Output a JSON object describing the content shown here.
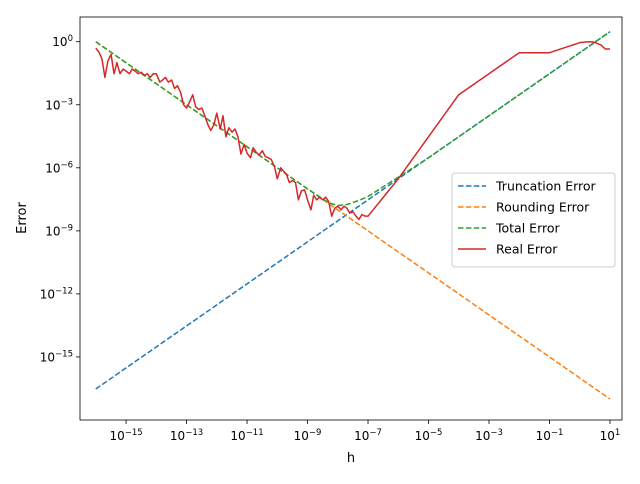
{
  "chart_data": {
    "type": "line",
    "xlabel": "h",
    "ylabel": "Error",
    "xscale": "log",
    "yscale": "log",
    "xlim": [
      3e-17,
      25
    ],
    "ylim": [
      1e-18,
      15
    ],
    "grid": false,
    "legend_position": "right",
    "x_ticks": [
      {
        "value": 1e-15,
        "base": "10",
        "exp": "−15"
      },
      {
        "value": 1e-13,
        "base": "10",
        "exp": "−13"
      },
      {
        "value": 1e-11,
        "base": "10",
        "exp": "−11"
      },
      {
        "value": 1e-09,
        "base": "10",
        "exp": "−9"
      },
      {
        "value": 1e-07,
        "base": "10",
        "exp": "−7"
      },
      {
        "value": 1e-05,
        "base": "10",
        "exp": "−5"
      },
      {
        "value": 0.001,
        "base": "10",
        "exp": "−3"
      },
      {
        "value": 0.1,
        "base": "10",
        "exp": "−1"
      },
      {
        "value": 10,
        "base": "10",
        "exp": "1"
      }
    ],
    "y_ticks": [
      {
        "value": 1e-15,
        "base": "10",
        "exp": "−15"
      },
      {
        "value": 1e-12,
        "base": "10",
        "exp": "−12"
      },
      {
        "value": 1e-09,
        "base": "10",
        "exp": "−9"
      },
      {
        "value": 1e-06,
        "base": "10",
        "exp": "−6"
      },
      {
        "value": 0.001,
        "base": "10",
        "exp": "−3"
      },
      {
        "value": 1,
        "base": "10",
        "exp": "0"
      }
    ],
    "series": [
      {
        "name": "Truncation Error",
        "color": "#1f77b4",
        "dash": "dashed",
        "x": [
          1e-16,
          1e-12,
          1e-08,
          0.0001,
          1,
          10
        ],
        "y": [
          3e-17,
          3e-13,
          3e-09,
          3e-05,
          0.3,
          3
        ]
      },
      {
        "name": "Rounding Error",
        "color": "#ff7f0e",
        "dash": "dashed",
        "x": [
          1e-16,
          1e-12,
          1e-08,
          0.0001,
          1,
          10
        ],
        "y": [
          1,
          0.0001,
          1e-08,
          1e-12,
          1e-16,
          1e-17
        ]
      },
      {
        "name": "Total Error",
        "color": "#2ca02c",
        "dash": "dashed",
        "x": [
          1e-16,
          1e-14,
          1e-12,
          1e-10,
          1e-09,
          3e-09,
          5e-09,
          1e-08,
          2e-08,
          5e-08,
          1e-07,
          1e-05,
          0.001,
          0.1,
          1,
          10
        ],
        "y": [
          1,
          0.01,
          0.0001,
          1e-06,
          1e-07,
          3.5e-08,
          2.2e-08,
          1.6e-08,
          1.8e-08,
          2.8e-08,
          4.3e-08,
          3e-06,
          0.0003,
          0.03,
          0.3,
          3
        ]
      },
      {
        "name": "Real Error",
        "color": "#d62728",
        "dash": "solid",
        "x": [
          1e-16,
          1.3e-16,
          1.6e-16,
          2e-16,
          2.5e-16,
          3.2e-16,
          4e-16,
          5e-16,
          6.3e-16,
          8e-16,
          1e-15,
          1.3e-15,
          1.6e-15,
          2e-15,
          2.5e-15,
          3.2e-15,
          4e-15,
          5e-15,
          6.3e-15,
          8e-15,
          1e-14,
          1.3e-14,
          1.6e-14,
          2e-14,
          2.5e-14,
          3.2e-14,
          4e-14,
          5e-14,
          6.3e-14,
          8e-14,
          1e-13,
          1.3e-13,
          1.6e-13,
          2e-13,
          2.5e-13,
          3.2e-13,
          4e-13,
          5e-13,
          6.3e-13,
          8e-13,
          1e-12,
          1.3e-12,
          1.6e-12,
          2e-12,
          2.5e-12,
          3.2e-12,
          4e-12,
          5e-12,
          6.3e-12,
          8e-12,
          1e-11,
          1.3e-11,
          1.6e-11,
          2e-11,
          2.5e-11,
          3.2e-11,
          4e-11,
          5e-11,
          6.3e-11,
          8e-11,
          1e-10,
          1.3e-10,
          1.6e-10,
          2e-10,
          2.5e-10,
          3.2e-10,
          4e-10,
          5e-10,
          6.3e-10,
          8e-10,
          1e-09,
          1.3e-09,
          1.6e-09,
          2e-09,
          2.5e-09,
          3.2e-09,
          4e-09,
          5e-09,
          6.3e-09,
          8e-09,
          1e-08,
          1.3e-08,
          1.6e-08,
          2e-08,
          2.5e-08,
          3.2e-08,
          4e-08,
          5e-08,
          6.3e-08,
          8e-08,
          1e-07,
          1e-06,
          1e-05,
          0.0001,
          0.001,
          0.01,
          0.1,
          1,
          2,
          3,
          5,
          7,
          10
        ],
        "y": [
          0.5,
          0.3,
          0.15,
          0.02,
          0.12,
          0.25,
          0.03,
          0.1,
          0.03,
          0.05,
          0.04,
          0.03,
          0.05,
          0.04,
          0.03,
          0.035,
          0.025,
          0.03,
          0.02,
          0.03,
          0.03,
          0.012,
          0.015,
          0.02,
          0.012,
          0.015,
          0.006,
          0.008,
          0.004,
          0.001,
          0.0007,
          0.0015,
          0.003,
          0.0008,
          0.0006,
          0.0007,
          0.0003,
          0.00012,
          6e-05,
          0.00011,
          0.0004,
          7e-05,
          0.0003,
          3e-05,
          8e-05,
          5e-05,
          7e-05,
          3e-05,
          4.5e-06,
          1.3e-05,
          5e-06,
          3e-06,
          9e-06,
          5.5e-06,
          4e-06,
          6.5e-06,
          3.5e-06,
          3e-06,
          2.5e-06,
          1.2e-06,
          3e-07,
          1e-06,
          7e-07,
          5e-07,
          2e-07,
          2.5e-07,
          2e-07,
          3e-08,
          8e-08,
          9e-08,
          3e-08,
          1e-08,
          5e-08,
          3e-08,
          4e-08,
          3e-08,
          4e-08,
          2.5e-08,
          5e-09,
          1.2e-08,
          1.5e-08,
          1e-08,
          1.5e-08,
          1.2e-08,
          7e-09,
          8e-09,
          5e-09,
          3.5e-09,
          6e-09,
          5e-09,
          5e-09,
          3e-07,
          3e-05,
          0.003,
          0.03,
          0.3,
          0.3,
          0.9,
          1.0,
          0.95,
          0.7,
          0.45,
          0.45
        ]
      }
    ]
  }
}
